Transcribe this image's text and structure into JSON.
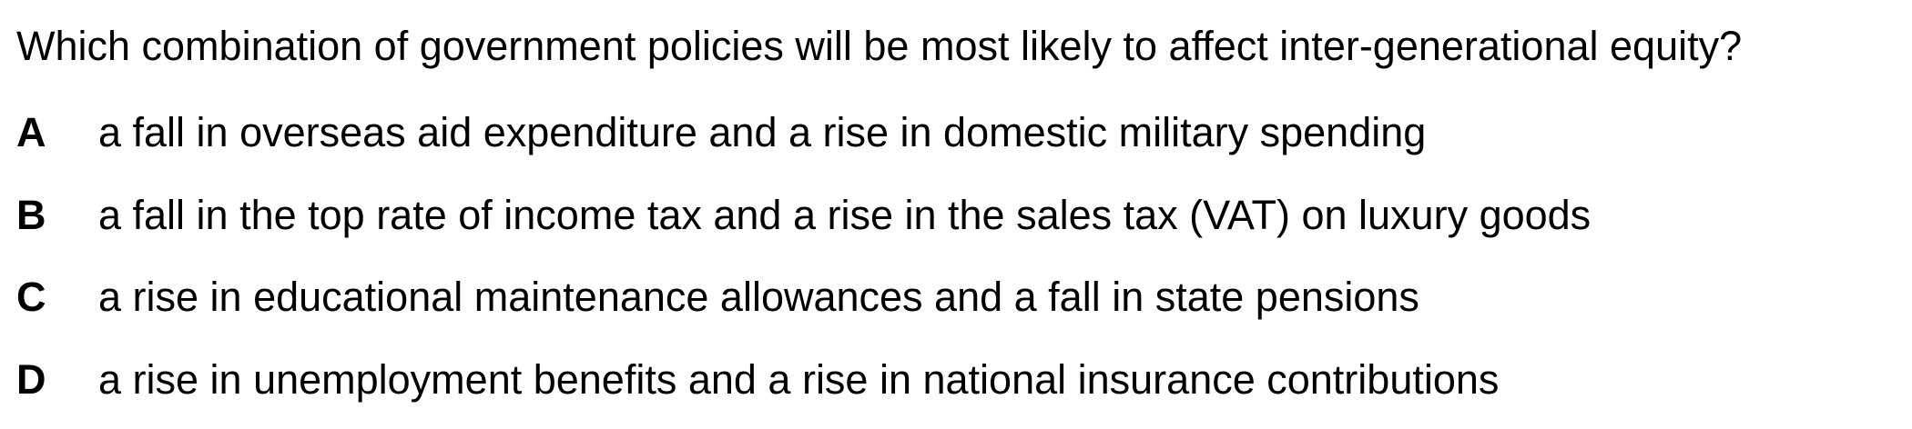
{
  "question": "Which combination of government policies will be most likely to affect inter-generational equity?",
  "options": [
    {
      "letter": "A",
      "text": "a fall in overseas aid expenditure and a rise in domestic military spending"
    },
    {
      "letter": "B",
      "text": "a fall in the top rate of income tax and a rise in the sales tax (VAT) on luxury goods"
    },
    {
      "letter": "C",
      "text": "a rise in educational maintenance allowances and a fall in state pensions"
    },
    {
      "letter": "D",
      "text": "a rise in unemployment benefits and a rise in national insurance contributions"
    }
  ]
}
